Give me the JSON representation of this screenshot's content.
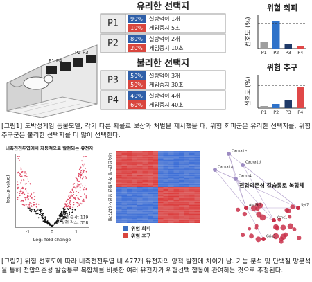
{
  "figure1": {
    "apparatus_labels": [
      "P1 P4",
      "P2 P3"
    ],
    "groups": [
      {
        "title": "유리한 선택지",
        "options": [
          {
            "label": "P1",
            "rows": [
              {
                "pct": "90%",
                "text": "설탕먹이 1개"
              },
              {
                "pct": "10%",
                "text": "게임중지 5초"
              }
            ]
          },
          {
            "label": "P2",
            "rows": [
              {
                "pct": "80%",
                "text": "설탕먹이 2개"
              },
              {
                "pct": "20%",
                "text": "게임중지 10초"
              }
            ]
          }
        ]
      },
      {
        "title": "불리한 선택지",
        "options": [
          {
            "label": "P3",
            "rows": [
              {
                "pct": "50%",
                "text": "설탕먹이 3개"
              },
              {
                "pct": "50%",
                "text": "게임중지 30초"
              }
            ]
          },
          {
            "label": "P4",
            "rows": [
              {
                "pct": "40%",
                "text": "설탕먹이 4개"
              },
              {
                "pct": "60%",
                "text": "게임중지 40초"
              }
            ]
          }
        ]
      }
    ],
    "caption": "[그림1] 도박성게임 동물모델, 각기 다른 확률로 보상과 처벌을 제시했을 때, 위험 회피군은 유리한 선택지를, 위험 추구군은 불리한 선택지를 더 많이 선택한다."
  },
  "chart_data": [
    {
      "type": "bar",
      "title": "위험 회피",
      "ylabel": "선호도 (%)",
      "categories": [
        "P1",
        "P2",
        "P3",
        "P4"
      ],
      "values": [
        15,
        65,
        10,
        6
      ],
      "colors": [
        "#9e9e9e",
        "#2f72c9",
        "#1f3a68",
        "#e04848"
      ],
      "ylim": [
        0,
        80
      ],
      "reference": 60
    },
    {
      "type": "bar",
      "title": "위험 추구",
      "ylabel": "선호도 (%)",
      "categories": [
        "P1",
        "P2",
        "P3",
        "P4"
      ],
      "values": [
        5,
        10,
        20,
        50
      ],
      "colors": [
        "#9e9e9e",
        "#2f72c9",
        "#1f3a68",
        "#e04848"
      ],
      "ylim": [
        0,
        80
      ],
      "reference": 55
    }
  ],
  "figure2": {
    "volcano": {
      "title": "내측전전두엽에서 차등적으로 발현되는 유전자",
      "ylabel": "- log₁₀(p-value)",
      "xlabel": "Log₂ fold change",
      "xticks": [
        "-1",
        "0",
        "1"
      ],
      "notes": [
        "발현 증가: 119",
        "발현 감소: 358"
      ]
    },
    "heatmap": {
      "side_label": "내측전전두엽 차등발현 유전자 (477개)",
      "legend": [
        "위험 회피",
        "위험 추구"
      ]
    },
    "network": {
      "title": "전압의존성 칼슘통로 복합체",
      "nodes": [
        "Cacna1e",
        "Cacna1d",
        "Cacna1a",
        "Cacnb4",
        "Atp2b2",
        "Kcnc1",
        "Syt7",
        "Gria3"
      ]
    },
    "caption": "[그림2] 위험 선호도에 따라 내측전전두엽 내 477개 유전자의 양적 발현에 차이가 남. 기능 분석 및 단백질 망분석을 통해 전압의존성 칼슘통로 복합체를 비롯한 여러 유전자가 위험선택 행동에 관여하는 것으로 추정된다."
  }
}
